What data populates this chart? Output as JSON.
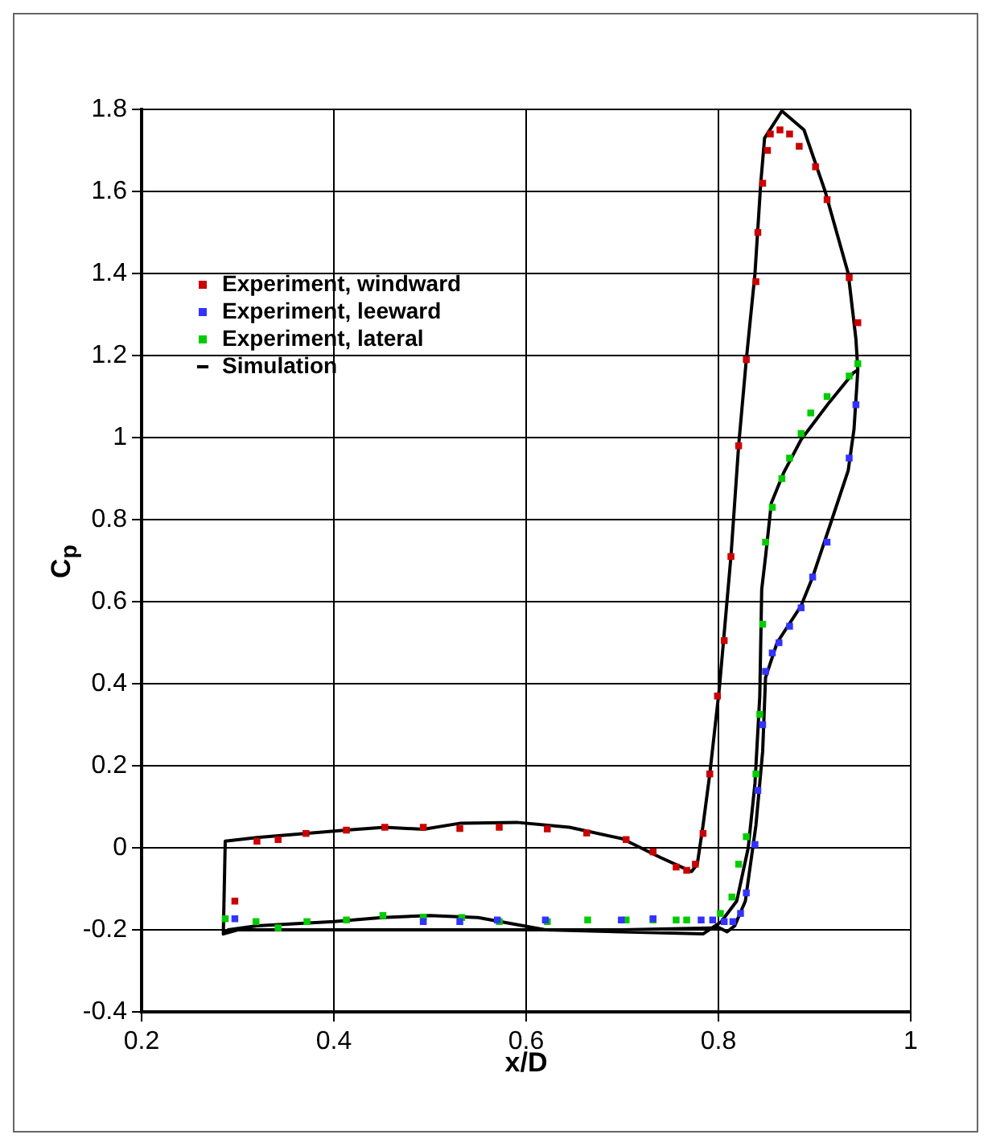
{
  "chart_data": {
    "type": "scatter",
    "xlabel": "x/D",
    "ylabel": "C$_{p}$",
    "xlim": [
      0.2,
      1
    ],
    "xticks": [
      0.2,
      0.4,
      0.6,
      0.8,
      1
    ],
    "ylim": [
      -0.4,
      1.8
    ],
    "yticks": [
      -0.4,
      -0.2,
      0,
      0.2,
      0.4,
      0.6,
      0.8,
      1,
      1.2,
      1.4,
      1.6,
      1.8
    ],
    "grid": true,
    "legend": "top left",
    "series": [
      {
        "name": "Experiment, windward",
        "marker": "square",
        "color": "#cc0000",
        "x": [
          0.297,
          0.32,
          0.342,
          0.371,
          0.413,
          0.453,
          0.493,
          0.531,
          0.572,
          0.622,
          0.663,
          0.704,
          0.732,
          0.756,
          0.767,
          0.776,
          0.784,
          0.791,
          0.799,
          0.806,
          0.813,
          0.821,
          0.829,
          0.839,
          0.841,
          0.846,
          0.851,
          0.854,
          0.864,
          0.874,
          0.884,
          0.901,
          0.913,
          0.936,
          0.945
        ],
        "values": [
          -0.13,
          0.016,
          0.02,
          0.035,
          0.043,
          0.05,
          0.05,
          0.047,
          0.05,
          0.046,
          0.036,
          0.02,
          -0.01,
          -0.047,
          -0.055,
          -0.04,
          0.035,
          0.18,
          0.37,
          0.505,
          0.71,
          0.98,
          1.19,
          1.38,
          1.5,
          1.62,
          1.7,
          1.74,
          1.75,
          1.74,
          1.71,
          1.66,
          1.58,
          1.39,
          1.28
        ]
      },
      {
        "name": "Experiment, leeward",
        "marker": "square",
        "color": "#3333ff",
        "x": [
          0.297,
          0.493,
          0.531,
          0.57,
          0.62,
          0.699,
          0.732,
          0.782,
          0.794,
          0.806,
          0.815,
          0.823,
          0.829,
          0.838,
          0.841,
          0.846,
          0.849,
          0.856,
          0.863,
          0.874,
          0.886,
          0.898,
          0.913,
          0.936,
          0.943
        ],
        "values": [
          -0.173,
          -0.18,
          -0.18,
          -0.176,
          -0.176,
          -0.176,
          -0.173,
          -0.176,
          -0.176,
          -0.18,
          -0.18,
          -0.16,
          -0.11,
          0.008,
          0.14,
          0.3,
          0.43,
          0.475,
          0.5,
          0.54,
          0.585,
          0.66,
          0.745,
          0.95,
          1.08
        ]
      },
      {
        "name": "Experiment, lateral",
        "marker": "square",
        "color": "#00cc00",
        "x": [
          0.287,
          0.319,
          0.342,
          0.372,
          0.413,
          0.451,
          0.493,
          0.533,
          0.572,
          0.622,
          0.664,
          0.704,
          0.732,
          0.756,
          0.767,
          0.802,
          0.814,
          0.821,
          0.829,
          0.839,
          0.843,
          0.846,
          0.849,
          0.856,
          0.866,
          0.874,
          0.886,
          0.896,
          0.913,
          0.936,
          0.945
        ],
        "values": [
          -0.173,
          -0.18,
          -0.195,
          -0.18,
          -0.176,
          -0.165,
          -0.169,
          -0.17,
          -0.18,
          -0.18,
          -0.176,
          -0.176,
          -0.176,
          -0.176,
          -0.176,
          -0.16,
          -0.12,
          -0.04,
          0.027,
          0.18,
          0.325,
          0.545,
          0.745,
          0.83,
          0.9,
          0.95,
          1.01,
          1.06,
          1.1,
          1.15,
          1.18
        ]
      },
      {
        "name": "Simulation",
        "type": "line",
        "marker": "none",
        "line_style": "solid",
        "color": "#000000",
        "x": [
          0.285,
          0.287,
          0.32,
          0.37,
          0.413,
          0.453,
          0.493,
          0.532,
          0.59,
          0.645,
          0.7,
          0.74,
          0.772,
          0.778,
          0.784,
          0.791,
          0.801,
          0.813,
          0.821,
          0.829,
          0.838,
          0.844,
          0.848,
          0.866,
          0.889,
          0.911,
          0.935,
          0.943,
          0.945,
          0.941,
          0.935,
          0.918,
          0.898,
          0.886,
          0.861,
          0.849,
          0.846,
          0.839,
          0.828,
          0.817,
          0.809,
          0.801,
          0.7,
          0.6,
          0.5,
          0.4,
          0.3,
          0.285,
          0.29,
          0.32,
          0.4,
          0.45,
          0.5,
          0.55,
          0.62,
          0.7,
          0.784,
          0.803,
          0.819,
          0.831,
          0.838,
          0.843,
          0.845,
          0.849,
          0.855,
          0.868,
          0.886,
          0.915,
          0.94,
          0.945
        ],
        "values": [
          -0.21,
          0.016,
          0.025,
          0.035,
          0.043,
          0.05,
          0.045,
          0.06,
          0.062,
          0.05,
          0.022,
          -0.024,
          -0.058,
          -0.04,
          0.055,
          0.18,
          0.39,
          0.71,
          0.98,
          1.19,
          1.4,
          1.62,
          1.73,
          1.796,
          1.75,
          1.6,
          1.4,
          1.24,
          1.165,
          1.02,
          0.92,
          0.8,
          0.66,
          0.59,
          0.5,
          0.415,
          0.235,
          0.055,
          -0.13,
          -0.19,
          -0.205,
          -0.195,
          -0.2,
          -0.2,
          -0.2,
          -0.2,
          -0.2,
          -0.21,
          -0.2,
          -0.19,
          -0.18,
          -0.17,
          -0.165,
          -0.17,
          -0.2,
          -0.205,
          -0.21,
          -0.18,
          -0.13,
          0,
          0.157,
          0.37,
          0.63,
          0.71,
          0.84,
          0.915,
          0.995,
          1.085,
          1.157,
          1.165
        ]
      }
    ]
  }
}
